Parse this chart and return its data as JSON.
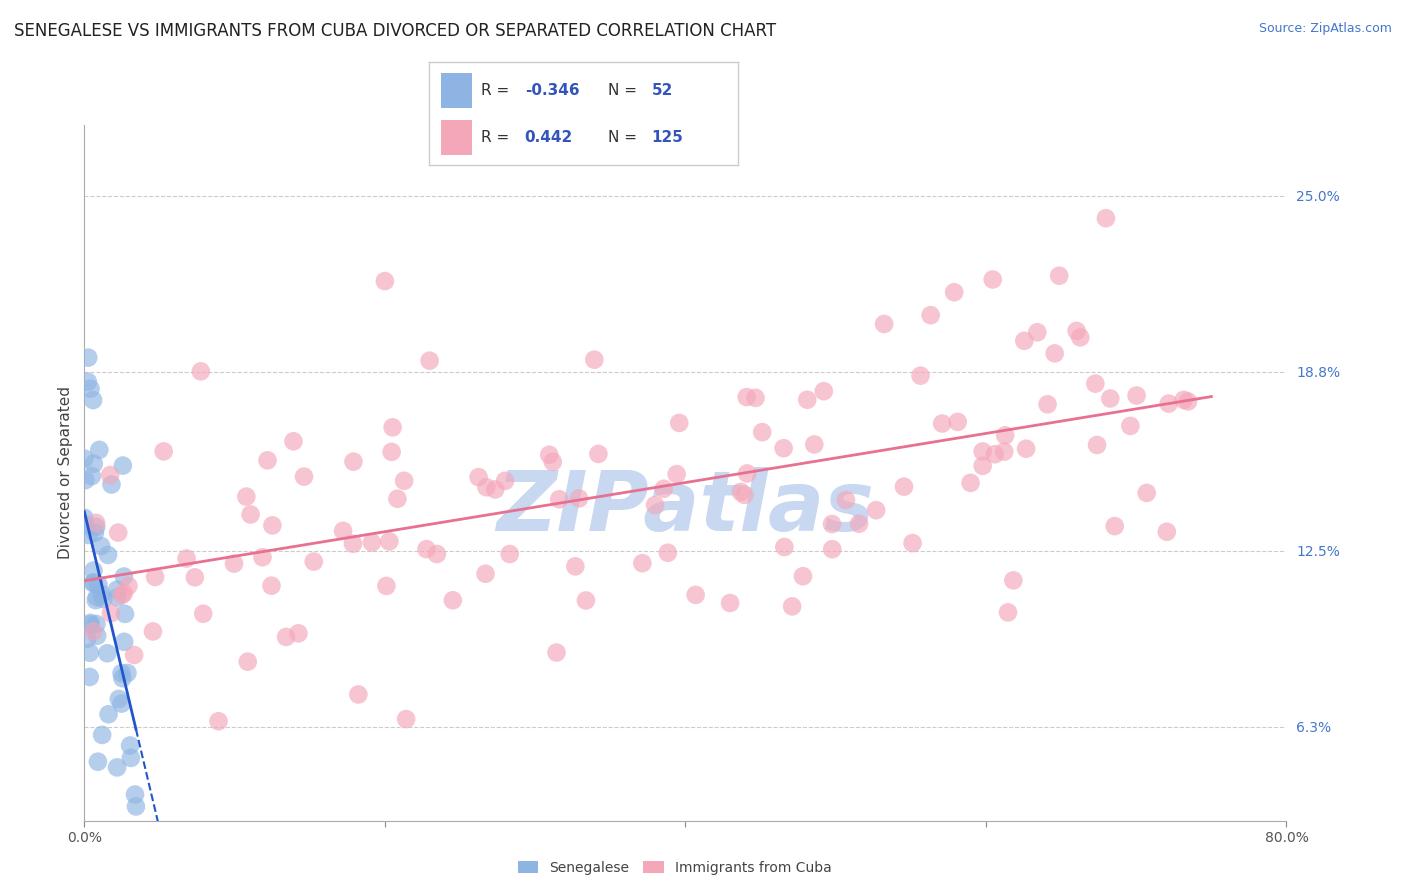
{
  "title": "SENEGALESE VS IMMIGRANTS FROM CUBA DIVORCED OR SEPARATED CORRELATION CHART",
  "source_text": "Source: ZipAtlas.com",
  "ylabel": "Divorced or Separated",
  "xlim": [
    0.0,
    80.0
  ],
  "ylim": [
    3.0,
    27.5
  ],
  "ytick_positions": [
    6.3,
    12.5,
    18.8,
    25.0
  ],
  "ytick_labels": [
    "6.3%",
    "12.5%",
    "18.8%",
    "25.0%"
  ],
  "background_color": "#ffffff",
  "grid_color": "#cccccc",
  "senegalese_color": "#8eb4e3",
  "cuba_color": "#f4a7b9",
  "senegalese_line_color": "#2255cc",
  "cuba_line_color": "#e87090",
  "senegalese_R": -0.346,
  "senegalese_N": 52,
  "cuba_R": 0.442,
  "cuba_N": 125,
  "title_fontsize": 12,
  "axis_label_fontsize": 11,
  "tick_fontsize": 10,
  "watermark_text": "ZIPatlas",
  "watermark_color": "#c8d8f0",
  "watermark_fontsize": 60,
  "legend_box_color": "#ffffff",
  "legend_border_color": "#cccccc",
  "legend_R_label_color": "#333333",
  "legend_val_color": "#3355bb"
}
